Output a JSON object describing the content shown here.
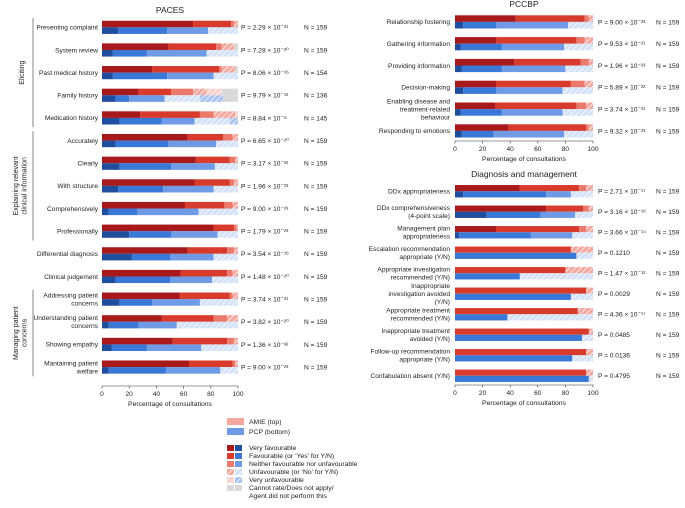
{
  "scale_labels": [
    "Very favourable",
    "Favourable (or 'Yes' for Y/N)",
    "Neither favourable nor unfavourable",
    "Unfavourable (or 'No' for Y/N)",
    "Very unfavourable",
    "Cannot rate/Does not apply/ Agent did not perform this"
  ],
  "colors": {
    "amie": [
      "#a8191b",
      "#d83a2c",
      "#ec7a6c",
      "#f3a79e",
      "#f7cfcb",
      "#d9d9d9"
    ],
    "pcp": [
      "#1f4e9e",
      "#3a78d8",
      "#6f9be6",
      "#a6c3f1",
      "#d3e2f8",
      "#d9d9d9"
    ]
  },
  "legend": {
    "amie_label": "AMIE (top)",
    "pcp_label": "PCP (bottom)",
    "items": [
      "Very favourable",
      "Favourable (or ‘Yes’ for Y/N)",
      "Neither favourable nor unfavourable",
      "Unfavourable (or ‘No’ for Y/N)",
      "Very unfavourable",
      "Cannot rate/Does not apply/",
      "Agent did not perform this"
    ]
  },
  "chart_data": [
    {
      "type": "stacked-bar",
      "title": "PACES",
      "xlabel": "Percentage of consultations",
      "xlim": [
        0,
        100
      ],
      "ticks": [
        "0",
        "20",
        "40",
        "60",
        "80",
        "100"
      ],
      "groups": [
        {
          "label": "Eliciting",
          "rows": [
            0,
            4
          ]
        },
        {
          "label": "Explaining relevant clinical information",
          "rows": [
            5,
            9
          ]
        },
        {
          "label": "Managing patient concerns",
          "rows": [
            12,
            15
          ]
        }
      ],
      "rows": [
        {
          "label": "Presenting complaint",
          "p": "P = 2.29 × 10⁻²¹",
          "n": "N = 159",
          "amie": [
            67,
            28,
            2,
            3,
            0,
            0
          ],
          "pcp": [
            12,
            36,
            30,
            22,
            0,
            0
          ]
        },
        {
          "label": "System review",
          "p": "P = 7.28 × 10⁻²⁰",
          "n": "N = 159",
          "amie": [
            49,
            35,
            4,
            9,
            0,
            3
          ],
          "pcp": [
            8,
            25,
            44,
            23,
            0,
            0
          ]
        },
        {
          "label": "Past medical history",
          "p": "P = 8.06 × 10⁻¹⁶",
          "n": "N = 154",
          "amie": [
            37,
            49,
            2,
            10,
            0,
            2
          ],
          "pcp": [
            8,
            40,
            34,
            18,
            0,
            0
          ]
        },
        {
          "label": "Family history",
          "p": "P = 9.79 × 10⁻¹²",
          "n": "N = 136",
          "amie": [
            27,
            24,
            16,
            10,
            11,
            12
          ],
          "pcp": [
            10,
            10,
            26,
            26,
            17,
            11
          ]
        },
        {
          "label": "Medication history",
          "p": "P = 8.84 × 10⁻⁶",
          "n": "N = 145",
          "amie": [
            28,
            44,
            10,
            16,
            2,
            0
          ],
          "pcp": [
            13,
            31,
            24,
            26,
            6,
            0
          ]
        },
        {
          "label": "Accurately",
          "p": "P = 6.65 × 10⁻²⁰",
          "n": "N = 159",
          "amie": [
            63,
            26,
            7,
            4,
            0,
            0
          ],
          "pcp": [
            10,
            39,
            35,
            16,
            0,
            0
          ]
        },
        {
          "label": "Clearly",
          "p": "P = 3.17 × 10⁻²²",
          "n": "N = 159",
          "amie": [
            69,
            25,
            4,
            2,
            0,
            0
          ],
          "pcp": [
            13,
            38,
            32,
            17,
            0,
            0
          ]
        },
        {
          "label": "With structure",
          "p": "P = 1.96 × 10⁻²³",
          "n": "N = 159",
          "amie": [
            68,
            26,
            3,
            3,
            0,
            0
          ],
          "pcp": [
            12,
            33,
            37,
            18,
            0,
            0
          ]
        },
        {
          "label": "Comprehensively",
          "p": "P = 9.00 × 10⁻²³",
          "n": "N = 159",
          "amie": [
            61,
            29,
            6,
            4,
            0,
            0
          ],
          "pcp": [
            5,
            21,
            45,
            29,
            0,
            0
          ]
        },
        {
          "label": "Professionally",
          "p": "P = 1.79 × 10⁻²³",
          "n": "N = 159",
          "amie": [
            82,
            15,
            2,
            1,
            0,
            0
          ],
          "pcp": [
            20,
            31,
            34,
            15,
            0,
            0
          ]
        },
        {
          "label": "Differential diagnosis",
          "p": "P = 3.54 × 10⁻¹⁶",
          "n": "N = 159",
          "amie": [
            63,
            29,
            5,
            3,
            0,
            0
          ],
          "pcp": [
            22,
            28,
            32,
            18,
            0,
            0
          ]
        },
        {
          "label": "Clinical judgement",
          "p": "P = 1.48 × 10⁻²⁰",
          "n": "N = 159",
          "amie": [
            58,
            34,
            4,
            4,
            0,
            0
          ],
          "pcp": [
            10,
            40,
            31,
            19,
            0,
            0
          ]
        },
        {
          "label": "Addressing patient concerns",
          "p": "P = 3.74 × 10⁻²¹",
          "n": "N = 159",
          "amie": [
            57,
            37,
            2,
            4,
            0,
            0
          ],
          "pcp": [
            13,
            24,
            35,
            28,
            0,
            0
          ]
        },
        {
          "label": "Understanding patient concerns",
          "p": "P = 3.82 × 10⁻²⁰",
          "n": "N = 159",
          "amie": [
            44,
            38,
            10,
            8,
            0,
            0
          ],
          "pcp": [
            5,
            22,
            28,
            45,
            0,
            0
          ]
        },
        {
          "label": "Showing empathy",
          "p": "P = 1.36 × 10⁻³²",
          "n": "N = 159",
          "amie": [
            52,
            40,
            5,
            3,
            0,
            0
          ],
          "pcp": [
            7,
            26,
            40,
            27,
            0,
            0
          ]
        },
        {
          "label": "Mantaining patient welfare",
          "p": "P = 9.00 × 10⁻²³",
          "n": "N = 159",
          "amie": [
            64,
            32,
            2,
            2,
            0,
            0
          ],
          "pcp": [
            5,
            42,
            40,
            13,
            0,
            0
          ]
        }
      ]
    },
    {
      "type": "stacked-bar",
      "title": "PCCBP",
      "xlabel": "Percentage of consultations",
      "xlim": [
        0,
        100
      ],
      "ticks": [
        "0",
        "20",
        "40",
        "60",
        "80",
        "100"
      ],
      "rows": [
        {
          "label": "Relationship fostering",
          "p": "P = 9.00 × 10⁻²³",
          "n": "N = 159",
          "amie": [
            44,
            50,
            3,
            3,
            0,
            0
          ],
          "pcp": [
            6,
            24,
            52,
            18,
            0,
            0
          ]
        },
        {
          "label": "Gathering information",
          "p": "P = 9.53 × 10⁻²¹",
          "n": "N = 159",
          "amie": [
            30,
            58,
            6,
            6,
            0,
            0
          ],
          "pcp": [
            4,
            30,
            45,
            21,
            0,
            0
          ]
        },
        {
          "label": "Providing information",
          "p": "P = 1.96 × 10⁻²³",
          "n": "N = 159",
          "amie": [
            43,
            48,
            6,
            3,
            0,
            0
          ],
          "pcp": [
            5,
            29,
            46,
            20,
            0,
            0
          ]
        },
        {
          "label": "Decision-making",
          "p": "P = 5.89 × 10⁻²²",
          "n": "N = 159",
          "amie": [
            30,
            54,
            10,
            6,
            0,
            0
          ],
          "pcp": [
            6,
            24,
            48,
            22,
            0,
            0
          ]
        },
        {
          "label": "Enabling disease and treatment-related behaviour",
          "p": "P = 3.74 × 10⁻²¹",
          "n": "N = 159",
          "amie": [
            29,
            59,
            7,
            5,
            0,
            0
          ],
          "pcp": [
            4,
            30,
            44,
            22,
            0,
            0
          ]
        },
        {
          "label": "Responding to emotions",
          "p": "P = 9.32 × 10⁻²³",
          "n": "N = 159",
          "amie": [
            39,
            56,
            2,
            3,
            0,
            0
          ],
          "pcp": [
            5,
            23,
            51,
            21,
            0,
            0
          ]
        }
      ]
    },
    {
      "type": "stacked-bar",
      "title": "Diagnosis and management",
      "xlabel": "Percentage of consultations",
      "xlim": [
        0,
        100
      ],
      "ticks": [
        "0",
        "20",
        "40",
        "60",
        "80",
        "100"
      ],
      "rows": [
        {
          "label": "DDx appropriateness",
          "p": "P = 2.71 × 10⁻¹⁷",
          "n": "N = 159",
          "amie": [
            47,
            43,
            5,
            5,
            0,
            0
          ],
          "pcp": [
            6,
            60,
            18,
            16,
            0,
            0
          ]
        },
        {
          "label": "DDx comprehensiveness (4-point scale)",
          "p": "P = 3.16 × 10⁻¹⁶",
          "n": "N = 159",
          "amie": [
            66,
            27,
            4,
            3,
            0,
            0
          ],
          "pcp": [
            23,
            39,
            25,
            13,
            0,
            0
          ]
        },
        {
          "label": "Management plan appropriateness",
          "p": "P = 3.66 × 10⁻¹⁴",
          "n": "N = 159",
          "amie": [
            30,
            60,
            5,
            5,
            0,
            0
          ],
          "pcp": [
            3,
            52,
            30,
            15,
            0,
            0
          ]
        },
        {
          "label": "Escalation recommendation appropriate (Y/N)",
          "p": "P = 0.1210",
          "n": "N = 159",
          "amie": [
            0,
            84,
            0,
            16,
            0,
            0
          ],
          "pcp": [
            0,
            88,
            0,
            12,
            0,
            0
          ]
        },
        {
          "label": "Appropriate investigation recommended (Y/N)",
          "p": "P = 1.47 × 10⁻¹²",
          "n": "N = 159",
          "amie": [
            0,
            80,
            0,
            20,
            0,
            0
          ],
          "pcp": [
            0,
            47,
            0,
            53,
            0,
            0
          ]
        },
        {
          "label": "Inappropriate investigation avoided (Y/N)",
          "p": "P = 0.0029",
          "n": "N = 159",
          "amie": [
            0,
            95,
            0,
            5,
            0,
            0
          ],
          "pcp": [
            0,
            84,
            0,
            16,
            0,
            0
          ]
        },
        {
          "label": "Appropriate treatment recommended (Y/N)",
          "p": "P = 4.36 × 10⁻¹⁷",
          "n": "N = 159",
          "amie": [
            0,
            89,
            0,
            11,
            0,
            0
          ],
          "pcp": [
            0,
            38,
            0,
            62,
            0,
            0
          ]
        },
        {
          "label": "Inappropriate treatment avoided (Y/N)",
          "p": "P = 0.0485",
          "n": "N = 159",
          "amie": [
            0,
            97,
            0,
            3,
            0,
            0
          ],
          "pcp": [
            0,
            92,
            0,
            8,
            0,
            0
          ]
        },
        {
          "label": "Follow-up recommendation appropriate (Y/N)",
          "p": "P = 0.0136",
          "n": "N = 159",
          "amie": [
            0,
            95,
            0,
            5,
            0,
            0
          ],
          "pcp": [
            0,
            85,
            0,
            15,
            0,
            0
          ]
        },
        {
          "label": "Confabulation absent (Y/N)",
          "p": "P = 0.4795",
          "n": "N = 159",
          "amie": [
            0,
            95,
            0,
            5,
            0,
            0
          ],
          "pcp": [
            0,
            97,
            0,
            3,
            0,
            0
          ]
        }
      ]
    }
  ]
}
